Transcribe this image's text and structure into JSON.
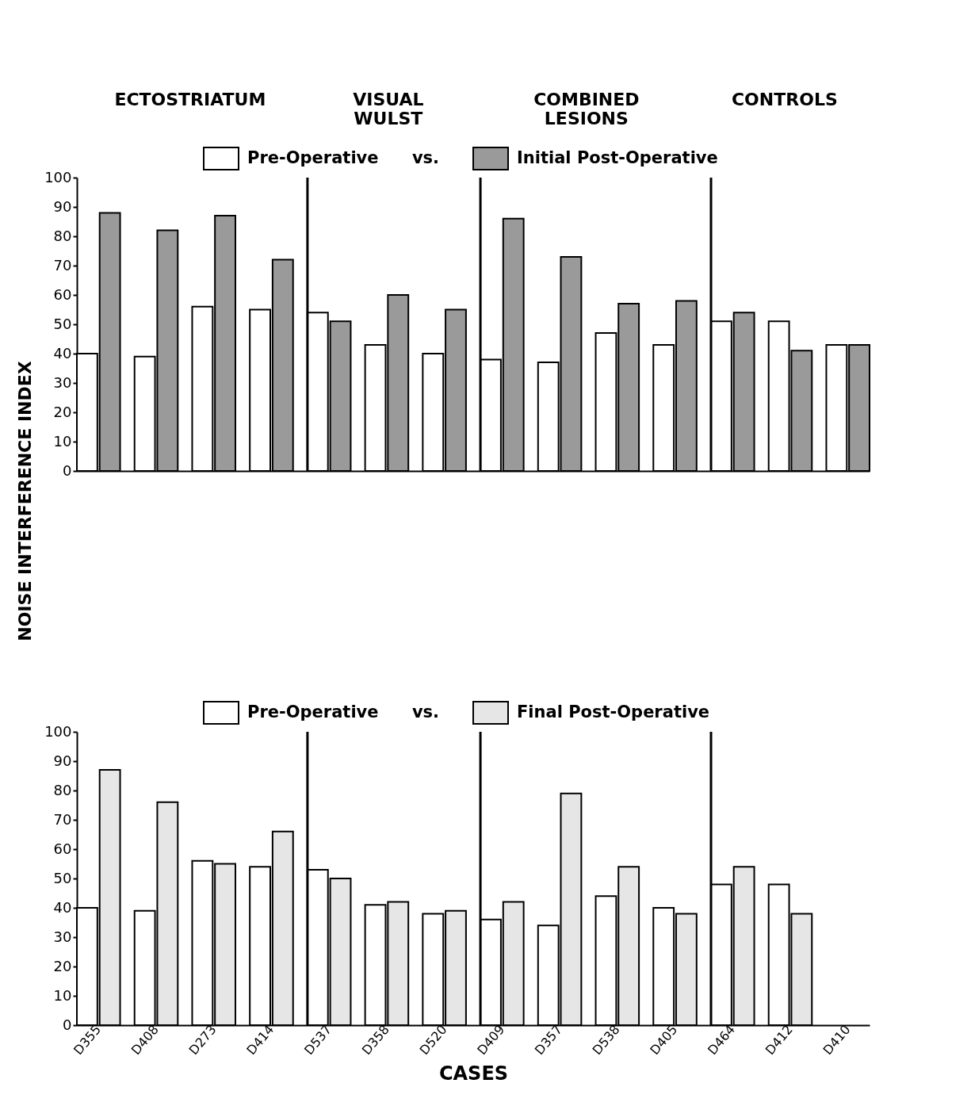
{
  "chart_data": [
    {
      "type": "bar",
      "ylabel": "NOISE INTERFERENCE INDEX",
      "legend_title": "vs.",
      "legend": "top",
      "tick_labels": "y",
      "annotations": [
        "ECTOSTRIATUM",
        "VISUAL WULST",
        "COMBINED LESIONS",
        "CONTROLS"
      ],
      "categories": [
        "D355",
        "D408",
        "D273",
        "D414",
        "D537",
        "D358",
        "D520",
        "D409",
        "D357",
        "D538",
        "D405",
        "D464",
        "D412",
        "D410"
      ],
      "series": [
        {
          "name": "Pre-Operative",
          "color": "#ffffff",
          "values": [
            40,
            39,
            56,
            55,
            54,
            43,
            40,
            38,
            37,
            47,
            43,
            51,
            51,
            43
          ]
        },
        {
          "name": "Initial Post-Operative",
          "color": "#9a9a9a",
          "values": [
            88,
            82,
            87,
            72,
            51,
            60,
            55,
            86,
            73,
            57,
            58,
            54,
            41,
            43
          ]
        }
      ],
      "ylim": [
        0,
        100
      ],
      "yticks": [
        0,
        10,
        20,
        30,
        40,
        50,
        60,
        70,
        80,
        90,
        100
      ],
      "ref_lines": [
        {
          "axis": "x",
          "value": "D537"
        },
        {
          "axis": "x",
          "value": "D409"
        },
        {
          "axis": "x",
          "value": "D464"
        }
      ]
    },
    {
      "type": "bar",
      "xlabel": "CASES",
      "legend_title": "vs.",
      "legend": "top",
      "categories": [
        "D355",
        "D408",
        "D273",
        "D414",
        "D537",
        "D358",
        "D520",
        "D409",
        "D357",
        "D538",
        "D405",
        "D464",
        "D412",
        "D410"
      ],
      "series": [
        {
          "name": "Pre-Operative",
          "color": "#ffffff",
          "values": [
            40,
            39,
            56,
            54,
            53,
            41,
            38,
            36,
            34,
            44,
            40,
            48,
            48,
            null
          ]
        },
        {
          "name": "Final Post-Operative",
          "color": "#e6e6e6",
          "values": [
            87,
            76,
            55,
            66,
            50,
            42,
            39,
            42,
            79,
            54,
            38,
            54,
            38,
            null
          ]
        }
      ],
      "ylim": [
        0,
        100
      ],
      "yticks": [
        0,
        10,
        20,
        30,
        40,
        50,
        60,
        70,
        80,
        90,
        100
      ],
      "ref_lines": [
        {
          "axis": "x",
          "value": "D537"
        },
        {
          "axis": "x",
          "value": "D409"
        },
        {
          "axis": "x",
          "value": "D464"
        }
      ]
    }
  ]
}
